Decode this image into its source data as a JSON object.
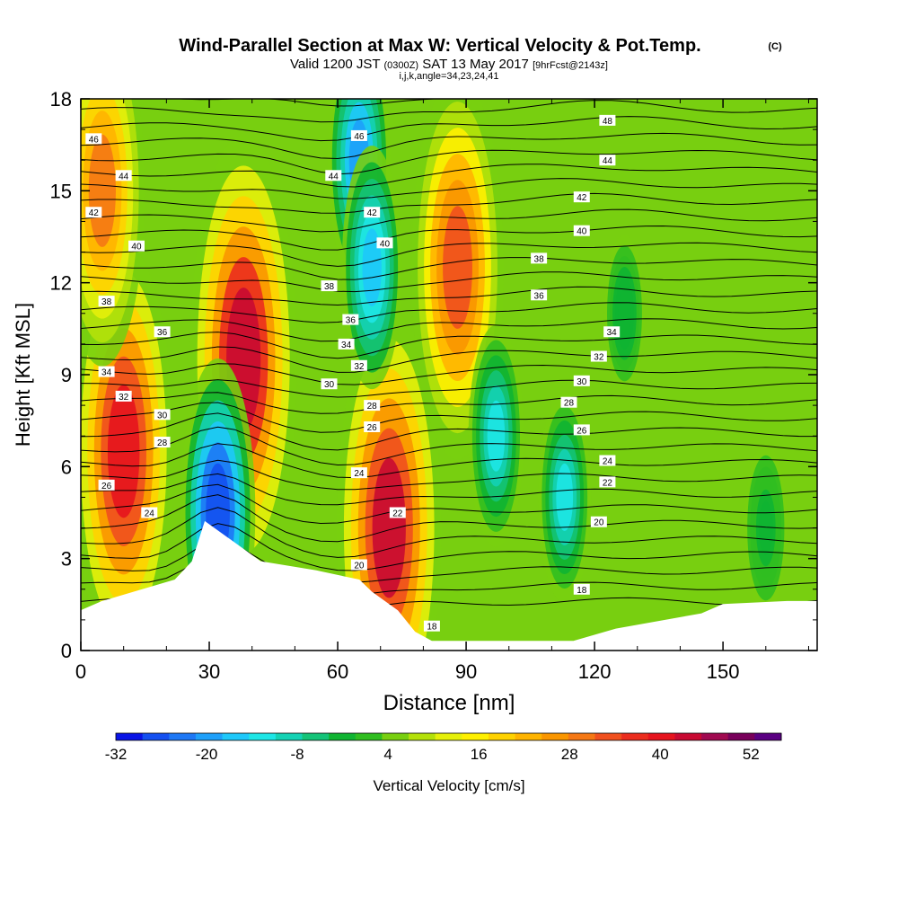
{
  "header": {
    "title": "Wind-Parallel Section at Max W: Vertical Velocity & Pot.Temp.",
    "copyright": "(C)",
    "valid_prefix": "Valid 1200 JST",
    "valid_z": "(0300Z)",
    "valid_date": "SAT 13 May 2017",
    "forecast": "[9hrFcst@2143z]",
    "params": "i,j,k,angle=34,23,24,41"
  },
  "chart_data": {
    "type": "heatmap",
    "title": "Wind-Parallel Section at Max W: Vertical Velocity & Pot.Temp.",
    "xlabel": "Distance [nm]",
    "ylabel": "Height [Kft MSL]",
    "xlim": [
      0,
      172
    ],
    "ylim": [
      0,
      18
    ],
    "x_ticks": [
      "0",
      "30",
      "60",
      "90",
      "120",
      "150"
    ],
    "y_ticks": [
      "0",
      "3",
      "6",
      "9",
      "12",
      "15",
      "18"
    ],
    "colorbar": {
      "label": "Vertical Velocity [cm/s]",
      "tick_labels": [
        "-32",
        "-20",
        "-8",
        "4",
        "16",
        "28",
        "40",
        "52"
      ],
      "bounds": [
        -32,
        56
      ],
      "step": 4,
      "colors": [
        "#0a14e6",
        "#1450f0",
        "#1e78f5",
        "#1ea0fa",
        "#1ec8fa",
        "#1ee6e6",
        "#14d2b4",
        "#14c378",
        "#10b432",
        "#30be20",
        "#78cf10",
        "#b4e10a",
        "#e6f00a",
        "#fff000",
        "#ffd200",
        "#ffb400",
        "#fa9600",
        "#f57814",
        "#f0501e",
        "#eb2d1e",
        "#e6141e",
        "#c80a32",
        "#a00a50",
        "#78005a",
        "#5a0082"
      ]
    },
    "terrain_kft": [
      [
        0,
        1.3
      ],
      [
        5,
        1.6
      ],
      [
        22,
        2.3
      ],
      [
        26,
        2.9
      ],
      [
        29,
        4.2
      ],
      [
        35,
        3.6
      ],
      [
        42,
        2.9
      ],
      [
        55,
        2.6
      ],
      [
        65,
        2.3
      ],
      [
        68,
        1.9
      ],
      [
        74,
        1.3
      ],
      [
        78,
        0.6
      ],
      [
        82,
        0.3
      ],
      [
        95,
        0.3
      ],
      [
        115,
        0.3
      ],
      [
        125,
        0.7
      ],
      [
        145,
        1.2
      ],
      [
        150,
        1.5
      ],
      [
        165,
        1.6
      ],
      [
        172,
        1.6
      ]
    ],
    "w_cells": [
      {
        "x": 10,
        "y": 6.5,
        "w": 48
      },
      {
        "x": 5,
        "y": 15,
        "w": 36
      },
      {
        "x": 38,
        "y": 9.5,
        "w": 54
      },
      {
        "x": 72,
        "y": 4,
        "w": 52
      },
      {
        "x": 88,
        "y": 12.5,
        "w": 42
      },
      {
        "x": 32,
        "y": 4.5,
        "w": -28
      },
      {
        "x": 65,
        "y": 16,
        "w": -18
      },
      {
        "x": 68,
        "y": 12.5,
        "w": -16
      },
      {
        "x": 97,
        "y": 7,
        "w": -12
      },
      {
        "x": 113,
        "y": 5,
        "w": -10
      },
      {
        "x": 127,
        "y": 11,
        "w": 0
      },
      {
        "x": 160,
        "y": 4,
        "w": 2
      }
    ],
    "theta_labels": [
      {
        "text": "46",
        "x": 3,
        "y": 16.7
      },
      {
        "text": "44",
        "x": 10,
        "y": 15.5
      },
      {
        "text": "42",
        "x": 3,
        "y": 14.3
      },
      {
        "text": "40",
        "x": 13,
        "y": 13.2
      },
      {
        "text": "38",
        "x": 6,
        "y": 11.4
      },
      {
        "text": "36",
        "x": 19,
        "y": 10.4
      },
      {
        "text": "34",
        "x": 6,
        "y": 9.1
      },
      {
        "text": "32",
        "x": 10,
        "y": 8.3
      },
      {
        "text": "30",
        "x": 19,
        "y": 7.7
      },
      {
        "text": "28",
        "x": 19,
        "y": 6.8
      },
      {
        "text": "26",
        "x": 6,
        "y": 5.4
      },
      {
        "text": "24",
        "x": 16,
        "y": 4.5
      },
      {
        "text": "46",
        "x": 65,
        "y": 16.8
      },
      {
        "text": "44",
        "x": 59,
        "y": 15.5
      },
      {
        "text": "42",
        "x": 68,
        "y": 14.3
      },
      {
        "text": "40",
        "x": 71,
        "y": 13.3
      },
      {
        "text": "38",
        "x": 58,
        "y": 11.9
      },
      {
        "text": "36",
        "x": 63,
        "y": 10.8
      },
      {
        "text": "34",
        "x": 62,
        "y": 10.0
      },
      {
        "text": "32",
        "x": 65,
        "y": 9.3
      },
      {
        "text": "30",
        "x": 58,
        "y": 8.7
      },
      {
        "text": "28",
        "x": 68,
        "y": 8.0
      },
      {
        "text": "26",
        "x": 68,
        "y": 7.3
      },
      {
        "text": "24",
        "x": 65,
        "y": 5.8
      },
      {
        "text": "22",
        "x": 74,
        "y": 4.5
      },
      {
        "text": "20",
        "x": 65,
        "y": 2.8
      },
      {
        "text": "18",
        "x": 82,
        "y": 0.8
      },
      {
        "text": "48",
        "x": 123,
        "y": 17.3
      },
      {
        "text": "44",
        "x": 123,
        "y": 16.0
      },
      {
        "text": "42",
        "x": 117,
        "y": 14.8
      },
      {
        "text": "40",
        "x": 117,
        "y": 13.7
      },
      {
        "text": "38",
        "x": 107,
        "y": 12.8
      },
      {
        "text": "36",
        "x": 107,
        "y": 11.6
      },
      {
        "text": "34",
        "x": 124,
        "y": 10.4
      },
      {
        "text": "32",
        "x": 121,
        "y": 9.6
      },
      {
        "text": "30",
        "x": 117,
        "y": 8.8
      },
      {
        "text": "28",
        "x": 114,
        "y": 8.1
      },
      {
        "text": "26",
        "x": 117,
        "y": 7.2
      },
      {
        "text": "24",
        "x": 123,
        "y": 6.2
      },
      {
        "text": "22",
        "x": 123,
        "y": 5.5
      },
      {
        "text": "20",
        "x": 121,
        "y": 4.2
      },
      {
        "text": "18",
        "x": 117,
        "y": 2.0
      }
    ]
  }
}
